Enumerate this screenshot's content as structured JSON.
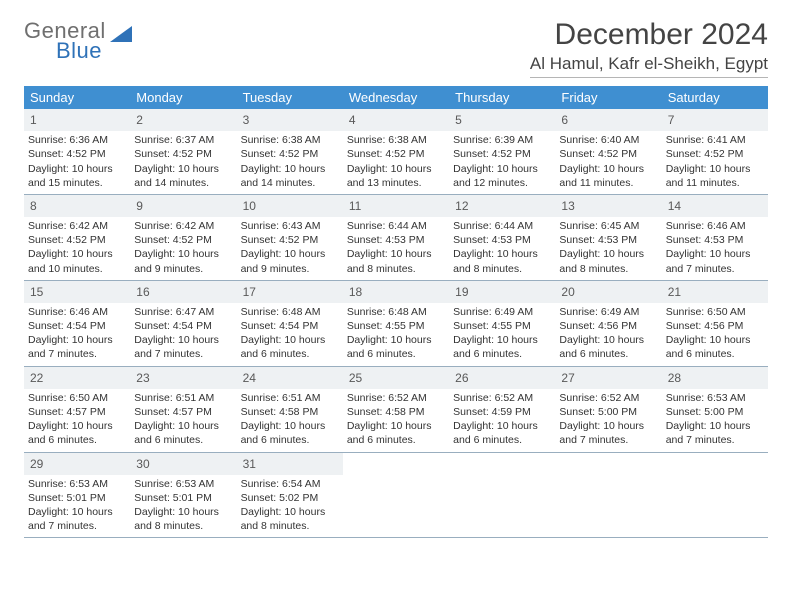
{
  "logo": {
    "top": "General",
    "bottom": "Blue"
  },
  "header": {
    "title": "December 2024",
    "location": "Al Hamul, Kafr el-Sheikh, Egypt"
  },
  "colors": {
    "header_bar": "#3f8fd1",
    "daynum_bg": "#eef1f3",
    "week_border": "#99aebf",
    "logo_blue": "#2f72b8",
    "logo_gray": "#6f6f6f"
  },
  "weekdays": [
    "Sunday",
    "Monday",
    "Tuesday",
    "Wednesday",
    "Thursday",
    "Friday",
    "Saturday"
  ],
  "days": [
    {
      "n": 1,
      "sunrise": "6:36 AM",
      "sunset": "4:52 PM",
      "daylight_h": 10,
      "daylight_m": 15
    },
    {
      "n": 2,
      "sunrise": "6:37 AM",
      "sunset": "4:52 PM",
      "daylight_h": 10,
      "daylight_m": 14
    },
    {
      "n": 3,
      "sunrise": "6:38 AM",
      "sunset": "4:52 PM",
      "daylight_h": 10,
      "daylight_m": 14
    },
    {
      "n": 4,
      "sunrise": "6:38 AM",
      "sunset": "4:52 PM",
      "daylight_h": 10,
      "daylight_m": 13
    },
    {
      "n": 5,
      "sunrise": "6:39 AM",
      "sunset": "4:52 PM",
      "daylight_h": 10,
      "daylight_m": 12
    },
    {
      "n": 6,
      "sunrise": "6:40 AM",
      "sunset": "4:52 PM",
      "daylight_h": 10,
      "daylight_m": 11
    },
    {
      "n": 7,
      "sunrise": "6:41 AM",
      "sunset": "4:52 PM",
      "daylight_h": 10,
      "daylight_m": 11
    },
    {
      "n": 8,
      "sunrise": "6:42 AM",
      "sunset": "4:52 PM",
      "daylight_h": 10,
      "daylight_m": 10
    },
    {
      "n": 9,
      "sunrise": "6:42 AM",
      "sunset": "4:52 PM",
      "daylight_h": 10,
      "daylight_m": 9
    },
    {
      "n": 10,
      "sunrise": "6:43 AM",
      "sunset": "4:52 PM",
      "daylight_h": 10,
      "daylight_m": 9
    },
    {
      "n": 11,
      "sunrise": "6:44 AM",
      "sunset": "4:53 PM",
      "daylight_h": 10,
      "daylight_m": 8
    },
    {
      "n": 12,
      "sunrise": "6:44 AM",
      "sunset": "4:53 PM",
      "daylight_h": 10,
      "daylight_m": 8
    },
    {
      "n": 13,
      "sunrise": "6:45 AM",
      "sunset": "4:53 PM",
      "daylight_h": 10,
      "daylight_m": 8
    },
    {
      "n": 14,
      "sunrise": "6:46 AM",
      "sunset": "4:53 PM",
      "daylight_h": 10,
      "daylight_m": 7
    },
    {
      "n": 15,
      "sunrise": "6:46 AM",
      "sunset": "4:54 PM",
      "daylight_h": 10,
      "daylight_m": 7
    },
    {
      "n": 16,
      "sunrise": "6:47 AM",
      "sunset": "4:54 PM",
      "daylight_h": 10,
      "daylight_m": 7
    },
    {
      "n": 17,
      "sunrise": "6:48 AM",
      "sunset": "4:54 PM",
      "daylight_h": 10,
      "daylight_m": 6
    },
    {
      "n": 18,
      "sunrise": "6:48 AM",
      "sunset": "4:55 PM",
      "daylight_h": 10,
      "daylight_m": 6
    },
    {
      "n": 19,
      "sunrise": "6:49 AM",
      "sunset": "4:55 PM",
      "daylight_h": 10,
      "daylight_m": 6
    },
    {
      "n": 20,
      "sunrise": "6:49 AM",
      "sunset": "4:56 PM",
      "daylight_h": 10,
      "daylight_m": 6
    },
    {
      "n": 21,
      "sunrise": "6:50 AM",
      "sunset": "4:56 PM",
      "daylight_h": 10,
      "daylight_m": 6
    },
    {
      "n": 22,
      "sunrise": "6:50 AM",
      "sunset": "4:57 PM",
      "daylight_h": 10,
      "daylight_m": 6
    },
    {
      "n": 23,
      "sunrise": "6:51 AM",
      "sunset": "4:57 PM",
      "daylight_h": 10,
      "daylight_m": 6
    },
    {
      "n": 24,
      "sunrise": "6:51 AM",
      "sunset": "4:58 PM",
      "daylight_h": 10,
      "daylight_m": 6
    },
    {
      "n": 25,
      "sunrise": "6:52 AM",
      "sunset": "4:58 PM",
      "daylight_h": 10,
      "daylight_m": 6
    },
    {
      "n": 26,
      "sunrise": "6:52 AM",
      "sunset": "4:59 PM",
      "daylight_h": 10,
      "daylight_m": 6
    },
    {
      "n": 27,
      "sunrise": "6:52 AM",
      "sunset": "5:00 PM",
      "daylight_h": 10,
      "daylight_m": 7
    },
    {
      "n": 28,
      "sunrise": "6:53 AM",
      "sunset": "5:00 PM",
      "daylight_h": 10,
      "daylight_m": 7
    },
    {
      "n": 29,
      "sunrise": "6:53 AM",
      "sunset": "5:01 PM",
      "daylight_h": 10,
      "daylight_m": 7
    },
    {
      "n": 30,
      "sunrise": "6:53 AM",
      "sunset": "5:01 PM",
      "daylight_h": 10,
      "daylight_m": 8
    },
    {
      "n": 31,
      "sunrise": "6:54 AM",
      "sunset": "5:02 PM",
      "daylight_h": 10,
      "daylight_m": 8
    }
  ],
  "layout": {
    "first_weekday_index": 0,
    "weeks": 5,
    "cols": 7
  },
  "labels": {
    "sunrise_prefix": "Sunrise: ",
    "sunset_prefix": "Sunset: ",
    "daylight_prefix": "Daylight: ",
    "hours_word": " hours",
    "and_word": "and ",
    "minutes_word": " minutes."
  }
}
